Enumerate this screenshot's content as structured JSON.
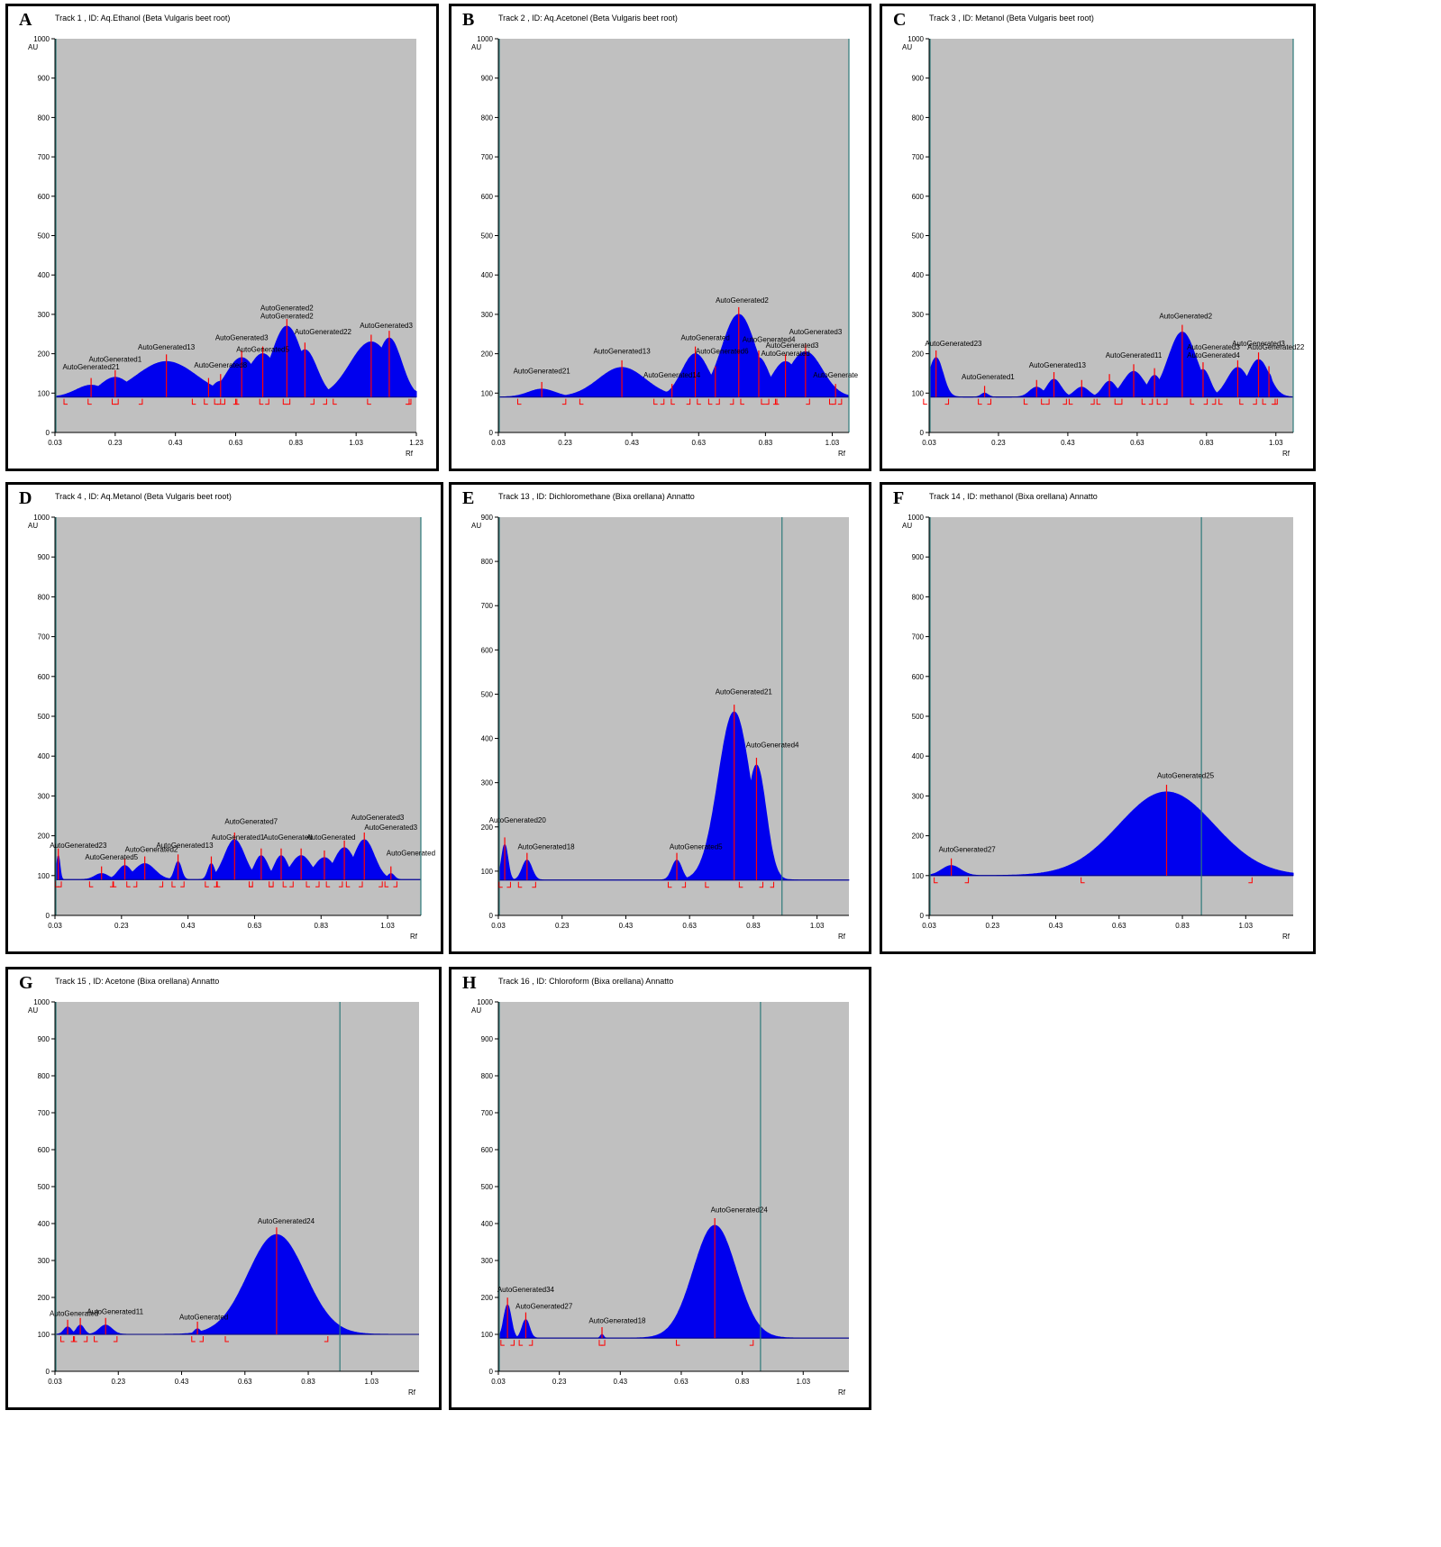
{
  "panels_meta": {
    "colors": {
      "fill": "#0000ee",
      "plot_bg": "#c0c0c0",
      "marker": "#ff0000",
      "front": "#2f7a7a"
    }
  },
  "chart_data": [
    {
      "letter": "A",
      "type": "area",
      "title": "Track  1 , ID: Aq.Ethanol (Beta Vulgaris beet root)",
      "ylabel": "AU",
      "xlabel": "Rf",
      "ylim": [
        0,
        1000
      ],
      "xlim": [
        0.03,
        1.23
      ],
      "yticks": [
        "0",
        "100",
        "200",
        "300",
        "400",
        "500",
        "600",
        "700",
        "800",
        "900",
        "1000"
      ],
      "xticks": [
        "0.03",
        "0.23",
        "0.43",
        "0.63",
        "0.83",
        "1.03",
        "1.23"
      ],
      "xticks_values": [
        0.03,
        0.23,
        0.43,
        0.63,
        0.83,
        1.03,
        1.23
      ],
      "baseline": 90,
      "front_rf": 1.34,
      "peaks": [
        {
          "x": 0.15,
          "y": 120,
          "w": 0.05
        },
        {
          "x": 0.23,
          "y": 140,
          "w": 0.05
        },
        {
          "x": 0.4,
          "y": 180,
          "w": 0.1
        },
        {
          "x": 0.54,
          "y": 120,
          "w": 0.03
        },
        {
          "x": 0.58,
          "y": 130,
          "w": 0.03
        },
        {
          "x": 0.65,
          "y": 190,
          "w": 0.05
        },
        {
          "x": 0.72,
          "y": 200,
          "w": 0.05
        },
        {
          "x": 0.8,
          "y": 270,
          "w": 0.05
        },
        {
          "x": 0.86,
          "y": 210,
          "w": 0.04
        },
        {
          "x": 1.08,
          "y": 230,
          "w": 0.07
        },
        {
          "x": 1.14,
          "y": 240,
          "w": 0.04
        }
      ],
      "labels": [
        {
          "text": "AutoGenerated21",
          "x": 0.15,
          "y": 160
        },
        {
          "text": "AutoGenerated1",
          "x": 0.23,
          "y": 180
        },
        {
          "text": "AutoGenerated13",
          "x": 0.4,
          "y": 210
        },
        {
          "text": "AutoGenerated8",
          "x": 0.58,
          "y": 165
        },
        {
          "text": "AutoGenerated3",
          "x": 0.65,
          "y": 235
        },
        {
          "text": "AutoGenerated5",
          "x": 0.72,
          "y": 205
        },
        {
          "text": "AutoGenerated2",
          "x": 0.8,
          "y": 310
        },
        {
          "text": "AutoGenerated2",
          "x": 0.8,
          "y": 290
        },
        {
          "text": "AutoGenerated22",
          "x": 0.92,
          "y": 250
        },
        {
          "text": "AutoGenerated3",
          "x": 1.13,
          "y": 265
        }
      ]
    },
    {
      "letter": "B",
      "type": "area",
      "title": "Track  2 , ID: Aq.Acetonel (Beta Vulgaris beet root)",
      "ylabel": "AU",
      "xlabel": "Rf",
      "ylim": [
        0,
        1000
      ],
      "xlim": [
        0.03,
        1.08
      ],
      "yticks": [
        "0",
        "100",
        "200",
        "300",
        "400",
        "500",
        "600",
        "700",
        "800",
        "900",
        "1000"
      ],
      "xticks": [
        "0.03",
        "0.23",
        "0.43",
        "0.63",
        "0.83",
        "1.03"
      ],
      "xticks_values": [
        0.03,
        0.23,
        0.43,
        0.63,
        0.83,
        1.03
      ],
      "baseline": 90,
      "front_rf": 1.08,
      "peaks": [
        {
          "x": 0.16,
          "y": 110,
          "w": 0.04
        },
        {
          "x": 0.4,
          "y": 165,
          "w": 0.07
        },
        {
          "x": 0.55,
          "y": 105,
          "w": 0.03
        },
        {
          "x": 0.62,
          "y": 200,
          "w": 0.04
        },
        {
          "x": 0.68,
          "y": 150,
          "w": 0.03
        },
        {
          "x": 0.75,
          "y": 300,
          "w": 0.05
        },
        {
          "x": 0.81,
          "y": 190,
          "w": 0.03
        },
        {
          "x": 0.89,
          "y": 180,
          "w": 0.04
        },
        {
          "x": 0.95,
          "y": 205,
          "w": 0.05
        },
        {
          "x": 1.04,
          "y": 105,
          "w": 0.01
        }
      ],
      "labels": [
        {
          "text": "AutoGenerated21",
          "x": 0.16,
          "y": 150
        },
        {
          "text": "AutoGenerated13",
          "x": 0.4,
          "y": 200
        },
        {
          "text": "AutoGenerated14",
          "x": 0.55,
          "y": 140
        },
        {
          "text": "AutoGenerated",
          "x": 0.65,
          "y": 235
        },
        {
          "text": "AutoGenerated6",
          "x": 0.7,
          "y": 200
        },
        {
          "text": "AutoGenerated2",
          "x": 0.76,
          "y": 330
        },
        {
          "text": "AutoGenerated4",
          "x": 0.84,
          "y": 230
        },
        {
          "text": "AutoGenerated3",
          "x": 0.91,
          "y": 215
        },
        {
          "text": "AutoGenerated",
          "x": 0.89,
          "y": 195
        },
        {
          "text": "AutoGenerated3",
          "x": 0.98,
          "y": 250
        },
        {
          "text": "AutoGenerate",
          "x": 1.04,
          "y": 140
        }
      ]
    },
    {
      "letter": "C",
      "type": "area",
      "title": "Track  3 , ID: Metanol (Beta Vulgaris beet root)",
      "ylabel": "AU",
      "xlabel": "Rf",
      "ylim": [
        0,
        1000
      ],
      "xlim": [
        0.03,
        1.08
      ],
      "yticks": [
        "0",
        "100",
        "200",
        "300",
        "400",
        "500",
        "600",
        "700",
        "800",
        "900",
        "1000"
      ],
      "xticks": [
        "0.03",
        "0.23",
        "0.43",
        "0.63",
        "0.83",
        "1.03"
      ],
      "xticks_values": [
        0.03,
        0.23,
        0.43,
        0.63,
        0.83,
        1.03
      ],
      "baseline": 90,
      "front_rf": 1.08,
      "peaks": [
        {
          "x": 0.05,
          "y": 190,
          "w": 0.02
        },
        {
          "x": 0.19,
          "y": 100,
          "w": 0.01
        },
        {
          "x": 0.34,
          "y": 115,
          "w": 0.02
        },
        {
          "x": 0.39,
          "y": 135,
          "w": 0.02
        },
        {
          "x": 0.47,
          "y": 115,
          "w": 0.02
        },
        {
          "x": 0.55,
          "y": 130,
          "w": 0.02
        },
        {
          "x": 0.62,
          "y": 155,
          "w": 0.03
        },
        {
          "x": 0.68,
          "y": 145,
          "w": 0.02
        },
        {
          "x": 0.76,
          "y": 255,
          "w": 0.04
        },
        {
          "x": 0.82,
          "y": 160,
          "w": 0.02
        },
        {
          "x": 0.92,
          "y": 165,
          "w": 0.03
        },
        {
          "x": 0.98,
          "y": 185,
          "w": 0.03
        },
        {
          "x": 1.01,
          "y": 150,
          "w": 0.01
        }
      ],
      "labels": [
        {
          "text": "AutoGenerated23",
          "x": 0.1,
          "y": 220
        },
        {
          "text": "AutoGenerated1",
          "x": 0.2,
          "y": 135
        },
        {
          "text": "AutoGenerated13",
          "x": 0.4,
          "y": 165
        },
        {
          "text": "AutoGenerated11",
          "x": 0.62,
          "y": 190
        },
        {
          "text": "AutoGenerated2",
          "x": 0.77,
          "y": 290
        },
        {
          "text": "AutoGenerated3",
          "x": 0.85,
          "y": 210
        },
        {
          "text": "AutoGenerated4",
          "x": 0.85,
          "y": 190
        },
        {
          "text": "AutoGenerated3",
          "x": 0.98,
          "y": 220
        },
        {
          "text": "AutoGenerated22",
          "x": 1.03,
          "y": 210
        }
      ]
    },
    {
      "letter": "D",
      "type": "area",
      "title": "Track  4 , ID: Aq.Metanol (Beta Vulgaris beet root)",
      "ylabel": "AU",
      "xlabel": "Rf",
      "ylim": [
        0,
        1000
      ],
      "xlim": [
        0.03,
        1.13
      ],
      "yticks": [
        "0",
        "100",
        "200",
        "300",
        "400",
        "500",
        "600",
        "700",
        "800",
        "900",
        "1000"
      ],
      "xticks": [
        "0.03",
        "0.23",
        "0.43",
        "0.63",
        "0.83",
        "1.03"
      ],
      "xticks_values": [
        0.03,
        0.23,
        0.43,
        0.63,
        0.83,
        1.03
      ],
      "baseline": 90,
      "front_rf": 1.13,
      "peaks": [
        {
          "x": 0.04,
          "y": 150,
          "w": 0.005
        },
        {
          "x": 0.17,
          "y": 105,
          "w": 0.02
        },
        {
          "x": 0.24,
          "y": 125,
          "w": 0.02
        },
        {
          "x": 0.3,
          "y": 130,
          "w": 0.03
        },
        {
          "x": 0.4,
          "y": 135,
          "w": 0.01
        },
        {
          "x": 0.5,
          "y": 130,
          "w": 0.01
        },
        {
          "x": 0.57,
          "y": 190,
          "w": 0.03
        },
        {
          "x": 0.65,
          "y": 150,
          "w": 0.02
        },
        {
          "x": 0.71,
          "y": 150,
          "w": 0.02
        },
        {
          "x": 0.77,
          "y": 150,
          "w": 0.03
        },
        {
          "x": 0.84,
          "y": 145,
          "w": 0.03
        },
        {
          "x": 0.9,
          "y": 170,
          "w": 0.03
        },
        {
          "x": 0.96,
          "y": 190,
          "w": 0.03
        },
        {
          "x": 1.04,
          "y": 105,
          "w": 0.01
        }
      ],
      "labels": [
        {
          "text": "AutoGenerated23",
          "x": 0.1,
          "y": 170
        },
        {
          "text": "AutoGenerated5",
          "x": 0.2,
          "y": 140
        },
        {
          "text": "AutoGenerated2",
          "x": 0.32,
          "y": 160
        },
        {
          "text": "AutoGenerated13",
          "x": 0.42,
          "y": 170
        },
        {
          "text": "AutoGenerated1",
          "x": 0.58,
          "y": 190
        },
        {
          "text": "AutoGenerated7",
          "x": 0.62,
          "y": 230
        },
        {
          "text": "AutoGenerated",
          "x": 0.73,
          "y": 190
        },
        {
          "text": "AutoGenerated",
          "x": 0.86,
          "y": 190
        },
        {
          "text": "AutoGenerated3",
          "x": 1.0,
          "y": 240
        },
        {
          "text": "AutoGenerated3",
          "x": 1.04,
          "y": 215
        },
        {
          "text": "AutoGenerated",
          "x": 1.1,
          "y": 150
        }
      ]
    },
    {
      "letter": "E",
      "type": "area",
      "title": "Track  13 , ID: Dichloromethane (Bixa orellana) Annatto",
      "ylabel": "AU",
      "xlabel": "Rf",
      "ylim": [
        0,
        900
      ],
      "xlim": [
        0.03,
        1.13
      ],
      "yticks": [
        "0",
        "100",
        "200",
        "300",
        "400",
        "500",
        "600",
        "700",
        "800",
        "900"
      ],
      "yticks_values": [
        0,
        100,
        200,
        300,
        400,
        500,
        600,
        700,
        800,
        900
      ],
      "xticks": [
        "0.03",
        "0.23",
        "0.43",
        "0.63",
        "0.83",
        "1.03"
      ],
      "xticks_values": [
        0.03,
        0.23,
        0.43,
        0.63,
        0.83,
        1.03
      ],
      "baseline": 80,
      "front_rf": 0.92,
      "peaks": [
        {
          "x": 0.05,
          "y": 160,
          "w": 0.01
        },
        {
          "x": 0.12,
          "y": 125,
          "w": 0.015
        },
        {
          "x": 0.59,
          "y": 125,
          "w": 0.015
        },
        {
          "x": 0.77,
          "y": 460,
          "w": 0.05
        },
        {
          "x": 0.84,
          "y": 340,
          "w": 0.03
        }
      ],
      "labels": [
        {
          "text": "AutoGenerated20",
          "x": 0.09,
          "y": 210
        },
        {
          "text": "AutoGenerated18",
          "x": 0.18,
          "y": 150
        },
        {
          "text": "AutoGenerated5",
          "x": 0.65,
          "y": 150
        },
        {
          "text": "AutoGenerated21",
          "x": 0.8,
          "y": 500
        },
        {
          "text": "AutoGenerated4",
          "x": 0.89,
          "y": 380
        }
      ]
    },
    {
      "letter": "F",
      "type": "area",
      "title": "Track  14 , ID: methanol (Bixa orellana) Annatto",
      "ylabel": "AU",
      "xlabel": "Rf",
      "ylim": [
        0,
        1000
      ],
      "xlim": [
        0.03,
        1.18
      ],
      "yticks": [
        "0",
        "100",
        "200",
        "300",
        "400",
        "500",
        "600",
        "700",
        "800",
        "900",
        "1000"
      ],
      "xticks": [
        "0.03",
        "0.23",
        "0.43",
        "0.63",
        "0.83",
        "1.03"
      ],
      "xticks_values": [
        0.03,
        0.23,
        0.43,
        0.63,
        0.83,
        1.03
      ],
      "baseline": 100,
      "front_rf": 0.89,
      "peaks": [
        {
          "x": 0.1,
          "y": 125,
          "w": 0.03
        },
        {
          "x": 0.78,
          "y": 310,
          "w": 0.15
        }
      ],
      "labels": [
        {
          "text": "AutoGenerated27",
          "x": 0.15,
          "y": 160
        },
        {
          "text": "AutoGenerated25",
          "x": 0.84,
          "y": 345
        }
      ]
    },
    {
      "letter": "G",
      "type": "area",
      "title": "Track  15 , ID: Acetone (Bixa orellana) Annatto",
      "ylabel": "AU",
      "xlabel": "Rf",
      "ylim": [
        0,
        1000
      ],
      "xlim": [
        0.03,
        1.18
      ],
      "yticks": [
        "0",
        "100",
        "200",
        "300",
        "400",
        "500",
        "600",
        "700",
        "800",
        "900",
        "1000"
      ],
      "xticks": [
        "0.03",
        "0.23",
        "0.43",
        "0.63",
        "0.83",
        "1.03"
      ],
      "xticks_values": [
        0.03,
        0.23,
        0.43,
        0.63,
        0.83,
        1.03
      ],
      "baseline": 100,
      "front_rf": 0.93,
      "peaks": [
        {
          "x": 0.07,
          "y": 120,
          "w": 0.012
        },
        {
          "x": 0.11,
          "y": 125,
          "w": 0.012
        },
        {
          "x": 0.19,
          "y": 125,
          "w": 0.02
        },
        {
          "x": 0.48,
          "y": 115,
          "w": 0.01
        },
        {
          "x": 0.73,
          "y": 370,
          "w": 0.09
        }
      ],
      "labels": [
        {
          "text": "AutoGenerated",
          "x": 0.09,
          "y": 150
        },
        {
          "text": "AutoGenerated11",
          "x": 0.22,
          "y": 155
        },
        {
          "text": "AutoGenerated",
          "x": 0.5,
          "y": 140
        },
        {
          "text": "AutoGenerated24",
          "x": 0.76,
          "y": 400
        }
      ]
    },
    {
      "letter": "H",
      "type": "area",
      "title": "Track  16 , ID: Chloroform (Bixa orellana) Annatto",
      "ylabel": "AU",
      "xlabel": "Rf",
      "ylim": [
        0,
        1000
      ],
      "xlim": [
        0.03,
        1.18
      ],
      "yticks": [
        "0",
        "100",
        "200",
        "300",
        "400",
        "500",
        "600",
        "700",
        "800",
        "900",
        "1000"
      ],
      "xticks": [
        "0.03",
        "0.23",
        "0.43",
        "0.63",
        "0.83",
        "1.03"
      ],
      "xticks_values": [
        0.03,
        0.23,
        0.43,
        0.63,
        0.83,
        1.03
      ],
      "baseline": 90,
      "front_rf": 0.89,
      "peaks": [
        {
          "x": 0.06,
          "y": 180,
          "w": 0.012
        },
        {
          "x": 0.12,
          "y": 140,
          "w": 0.012
        },
        {
          "x": 0.37,
          "y": 100,
          "w": 0.005
        },
        {
          "x": 0.74,
          "y": 395,
          "w": 0.07
        }
      ],
      "labels": [
        {
          "text": "AutoGenerated34",
          "x": 0.12,
          "y": 215
        },
        {
          "text": "AutoGenerated27",
          "x": 0.18,
          "y": 170
        },
        {
          "text": "AutoGenerated18",
          "x": 0.42,
          "y": 130
        },
        {
          "text": "AutoGenerated24",
          "x": 0.82,
          "y": 430
        }
      ]
    }
  ]
}
